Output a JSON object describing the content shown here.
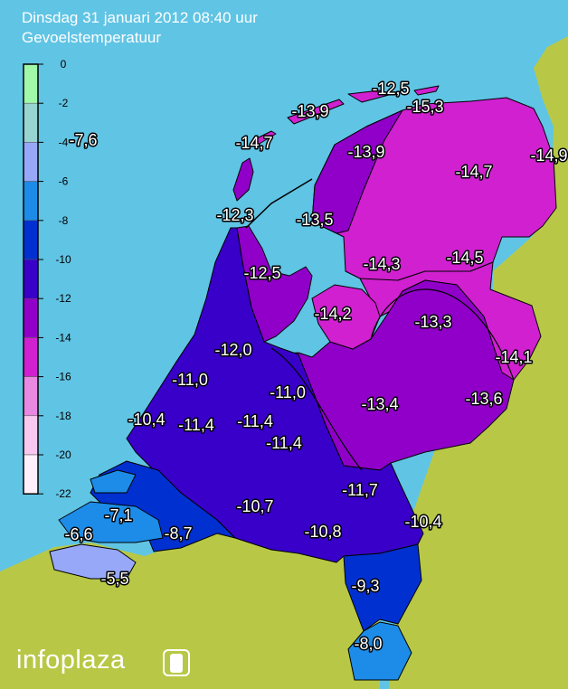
{
  "header": {
    "title": "Dinsdag 31 januari 2012 08:40 uur",
    "subtitle": "Gevoelstemperatuur"
  },
  "legend": {
    "ticks": [
      "0",
      "-2",
      "-4",
      "-6",
      "-8",
      "-10",
      "-12",
      "-14",
      "-16",
      "-18",
      "-20",
      "-22"
    ],
    "colors": [
      "#a0f8a8",
      "#98d4d0",
      "#98a8f8",
      "#1c8ce8",
      "#0030d0",
      "#3800c8",
      "#9000c8",
      "#d020d0",
      "#e888e0",
      "#f8c8f0",
      "#fff0fc"
    ]
  },
  "colors": {
    "sea": "#60c4e4",
    "land_outside": "#b8c846"
  },
  "map_labels": [
    "-12,5",
    "-15,3",
    "-13,9",
    "-7,6",
    "-14,7",
    "-13,9",
    "-14,7",
    "-14,9",
    "-12,3",
    "-13,5",
    "-14,3",
    "-14,5",
    "-12,5",
    "-14,2",
    "-13,3",
    "-12,0",
    "-14,1",
    "-11,0",
    "-11,0",
    "-13,4",
    "-13,6",
    "-10,4",
    "-11,4",
    "-11,4",
    "-11,4",
    "-11,7",
    "-10,7",
    "-7,1",
    "-10,8",
    "-10,4",
    "-6,6",
    "-8,7",
    "-5,5",
    "-9,3",
    "-8,0"
  ],
  "logo": {
    "text": "infoplaza",
    "icon": "info-i-icon"
  }
}
